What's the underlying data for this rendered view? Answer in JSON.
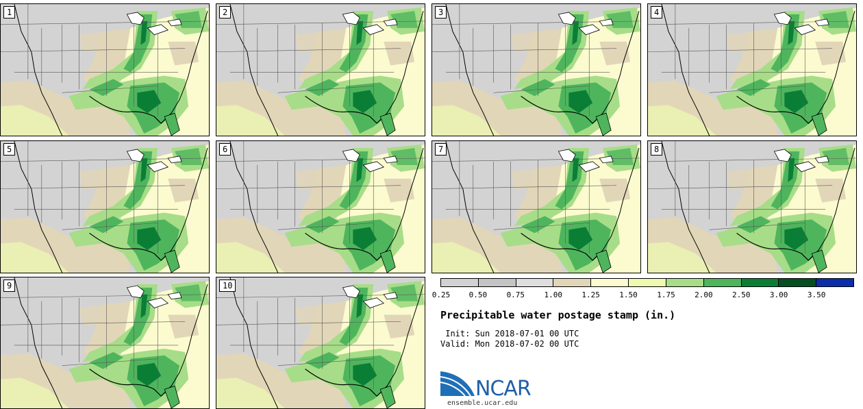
{
  "stamps": [
    {
      "label": "1"
    },
    {
      "label": "2"
    },
    {
      "label": "3"
    },
    {
      "label": "4"
    },
    {
      "label": "5"
    },
    {
      "label": "6"
    },
    {
      "label": "7"
    },
    {
      "label": "8"
    },
    {
      "label": "9"
    },
    {
      "label": "10"
    }
  ],
  "colorbar": {
    "colors": [
      "#d2d2d2",
      "#c4c4c4",
      "#dedede",
      "#e2d6b8",
      "#fbfbcf",
      "#eefab0",
      "#a7dd88",
      "#4fb55d",
      "#0b7e36",
      "#064f22",
      "#0b2fab"
    ],
    "tick_labels": [
      "0.25",
      "0.50",
      "0.75",
      "1.00",
      "1.25",
      "1.50",
      "1.75",
      "2.00",
      "2.50",
      "3.00",
      "3.50"
    ]
  },
  "title": "Precipitable water postage stamp (in.)",
  "init_line": " Init: Sun 2018-07-01 00 UTC",
  "valid_line": "Valid: Mon 2018-07-02 00 UTC",
  "logo": {
    "wordmark": "NCAR",
    "url": "ensemble.ucar.edu"
  }
}
